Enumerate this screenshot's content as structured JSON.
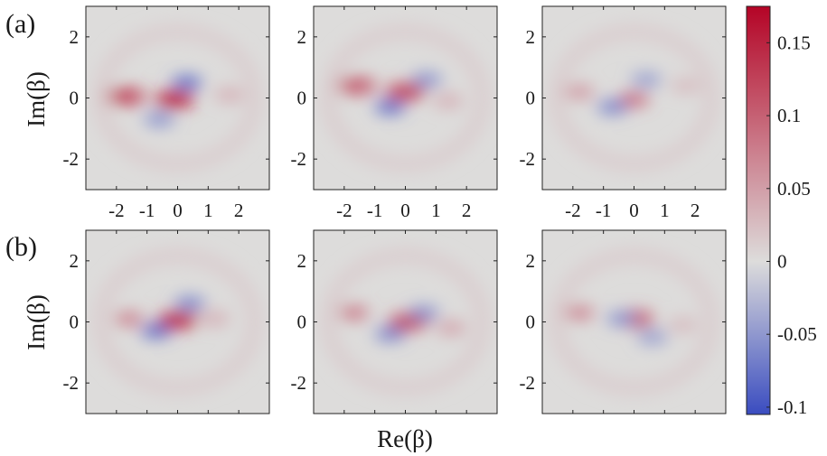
{
  "chart_data": {
    "type": "heatmap",
    "title": "",
    "xlabel": "Re(β)",
    "ylabel": "Im(β)",
    "panel_labels": [
      "(a)",
      "(b)"
    ],
    "xlim": [
      -3,
      3
    ],
    "ylim": [
      -3,
      3
    ],
    "xticks": [
      -2,
      -1,
      0,
      1,
      2
    ],
    "yticks": [
      2,
      0,
      -2
    ],
    "xtick_labels": [
      "-2",
      "-1",
      "0",
      "1",
      "2"
    ],
    "ytick_labels": [
      "2",
      "0",
      "-2"
    ],
    "colorbar": {
      "range": [
        -0.105,
        0.175
      ],
      "ticks": [
        0.15,
        0.1,
        0.05,
        0,
        -0.05,
        -0.1
      ],
      "tick_labels": [
        "0.15",
        "0.1",
        "0.05",
        "0",
        "-0.05",
        "-0.1"
      ],
      "colors": {
        "min": "#3a4cc0",
        "zero": "#dddcdb",
        "max": "#b40426"
      }
    },
    "panels": [
      {
        "row": "(a)",
        "col": 1,
        "features": [
          {
            "x": -1.7,
            "y": 0.05,
            "value": 0.13
          },
          {
            "x": -0.1,
            "y": -0.05,
            "value": 0.16
          },
          {
            "x": 0.3,
            "y": 0.5,
            "value": -0.09
          },
          {
            "x": -0.6,
            "y": -0.7,
            "value": -0.06
          },
          {
            "x": 1.7,
            "y": 0.1,
            "value": 0.04
          }
        ]
      },
      {
        "row": "(a)",
        "col": 2,
        "features": [
          {
            "x": -1.6,
            "y": 0.4,
            "value": 0.11
          },
          {
            "x": 0.0,
            "y": 0.2,
            "value": 0.13
          },
          {
            "x": 0.7,
            "y": 0.6,
            "value": -0.06
          },
          {
            "x": -0.5,
            "y": -0.3,
            "value": -0.09
          },
          {
            "x": 1.4,
            "y": -0.1,
            "value": 0.04
          }
        ]
      },
      {
        "row": "(a)",
        "col": 3,
        "features": [
          {
            "x": -1.8,
            "y": 0.2,
            "value": 0.06
          },
          {
            "x": 0.0,
            "y": -0.05,
            "value": 0.1
          },
          {
            "x": -0.7,
            "y": -0.3,
            "value": -0.07
          },
          {
            "x": 0.4,
            "y": 0.6,
            "value": -0.05
          },
          {
            "x": 1.7,
            "y": 0.4,
            "value": 0.03
          }
        ]
      },
      {
        "row": "(b)",
        "col": 1,
        "features": [
          {
            "x": -1.6,
            "y": 0.1,
            "value": 0.08
          },
          {
            "x": 0.0,
            "y": 0.05,
            "value": 0.15
          },
          {
            "x": 0.4,
            "y": 0.6,
            "value": -0.07
          },
          {
            "x": -0.7,
            "y": -0.3,
            "value": -0.09
          },
          {
            "x": 1.2,
            "y": 0.1,
            "value": 0.04
          }
        ]
      },
      {
        "row": "(b)",
        "col": 2,
        "features": [
          {
            "x": -1.7,
            "y": 0.3,
            "value": 0.09
          },
          {
            "x": 0.1,
            "y": 0.0,
            "value": 0.12
          },
          {
            "x": 0.6,
            "y": 0.3,
            "value": -0.06
          },
          {
            "x": -0.5,
            "y": -0.4,
            "value": -0.07
          },
          {
            "x": 1.5,
            "y": -0.2,
            "value": 0.05
          }
        ]
      },
      {
        "row": "(b)",
        "col": 3,
        "features": [
          {
            "x": -1.8,
            "y": 0.3,
            "value": 0.08
          },
          {
            "x": 0.0,
            "y": 0.1,
            "value": 0.11
          },
          {
            "x": -0.4,
            "y": 0.1,
            "value": -0.06
          },
          {
            "x": 0.6,
            "y": -0.5,
            "value": -0.05
          },
          {
            "x": 1.6,
            "y": -0.1,
            "value": 0.03
          }
        ]
      }
    ]
  }
}
